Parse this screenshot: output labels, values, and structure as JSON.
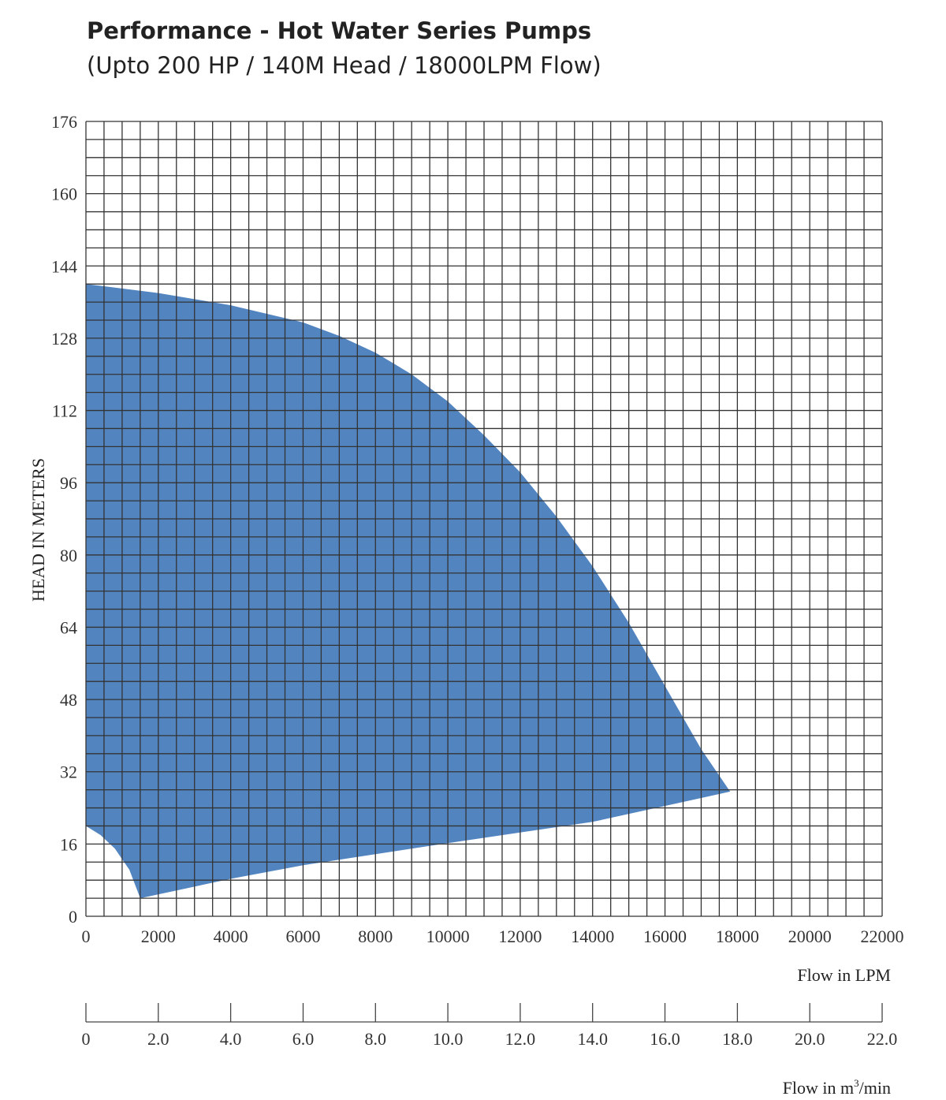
{
  "chart_data": {
    "type": "area",
    "title": "Performance - Hot Water Series Pumps",
    "subtitle": "(Upto 200 HP / 140M Head / 18000LPM Flow)",
    "ylabel": "HEAD IN METERS",
    "xlabel": "Flow in LPM",
    "xlabel_secondary_prefix": "Flow in m",
    "xlabel_secondary_sup": "3",
    "xlabel_secondary_suffix": "/min",
    "xlim": [
      0,
      22000
    ],
    "ylim": [
      0,
      176
    ],
    "x_ticks": [
      "0",
      "2000",
      "4000",
      "6000",
      "8000",
      "10000",
      "12000",
      "14000",
      "16000",
      "18000",
      "20000",
      "22000"
    ],
    "y_ticks": [
      "0",
      "16",
      "32",
      "48",
      "64",
      "80",
      "96",
      "112",
      "128",
      "144",
      "160",
      "176"
    ],
    "secondary_ticks": [
      "0",
      "2.0",
      "4.0",
      "6.0",
      "8.0",
      "10.0",
      "12.0",
      "14.0",
      "16.0",
      "18.0",
      "20.0",
      "22.0"
    ],
    "grid": true,
    "fill_color": "#3a73b7",
    "grid_color": "#333333",
    "series": [
      {
        "values": [
          [
            0,
            140
          ],
          [
            2000,
            138
          ],
          [
            4000,
            135.3
          ],
          [
            6000,
            131.5
          ],
          [
            7000,
            128.5
          ],
          [
            8000,
            124.8
          ],
          [
            9000,
            120
          ],
          [
            10000,
            114
          ],
          [
            11000,
            106.5
          ],
          [
            12000,
            98.3
          ],
          [
            13000,
            88.5
          ],
          [
            14000,
            77.5
          ],
          [
            15000,
            65
          ],
          [
            16000,
            51
          ],
          [
            17000,
            37
          ],
          [
            17800,
            27.6
          ],
          [
            14000,
            20.9
          ],
          [
            10000,
            16.2
          ],
          [
            6000,
            11.3
          ],
          [
            4000,
            8.3
          ],
          [
            1500,
            4
          ],
          [
            1200,
            10.3
          ],
          [
            800,
            15
          ],
          [
            400,
            18
          ],
          [
            0,
            20
          ]
        ]
      }
    ]
  }
}
